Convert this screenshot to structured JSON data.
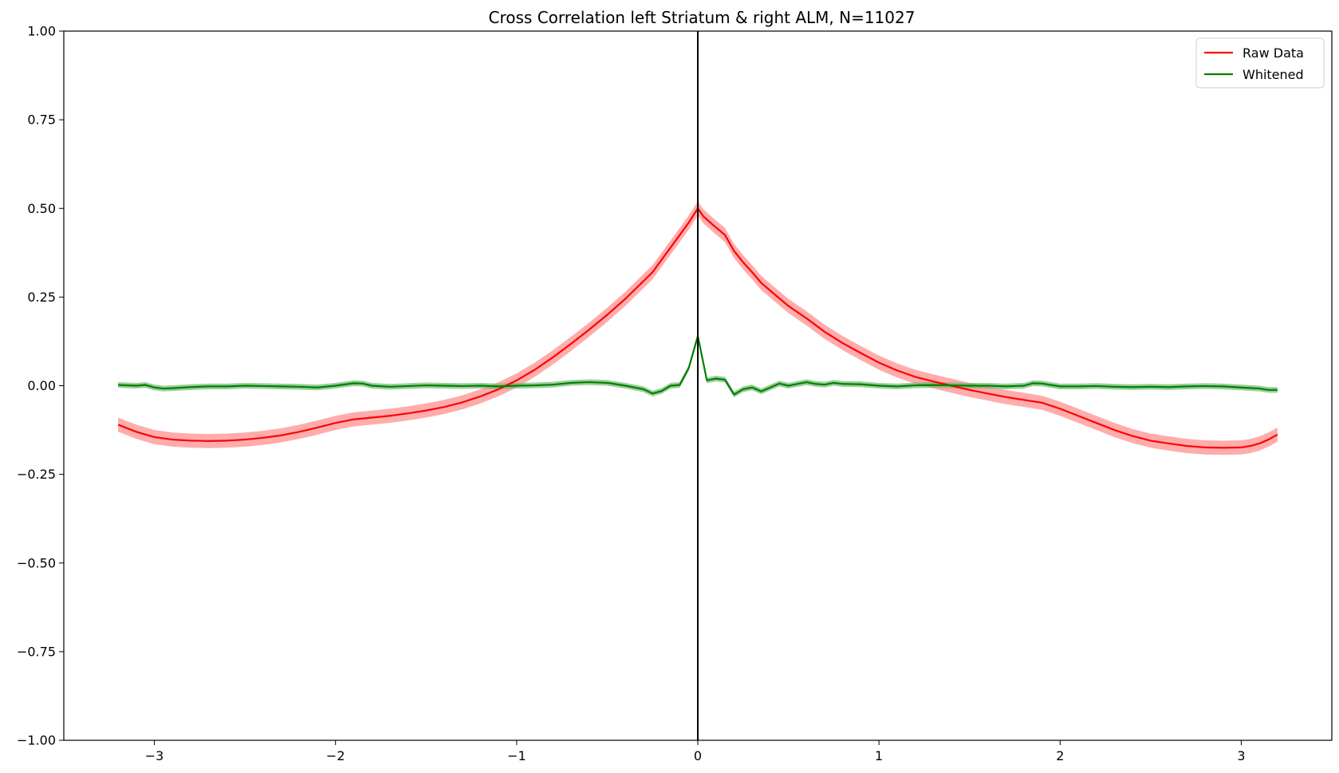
{
  "chart_data": {
    "type": "line",
    "title": "Cross Correlation left Striatum & right ALM, N=11027",
    "xlabel": "",
    "ylabel": "",
    "xlim": [
      -3.5,
      3.5
    ],
    "ylim": [
      -1.0,
      1.0
    ],
    "x_ticks": [
      -3,
      -2,
      -1,
      0,
      1,
      2,
      3
    ],
    "x_tick_labels": [
      "−3",
      "−2",
      "−1",
      "0",
      "1",
      "2",
      "3"
    ],
    "y_ticks": [
      -1.0,
      -0.75,
      -0.5,
      -0.25,
      0.0,
      0.25,
      0.5,
      0.75,
      1.0
    ],
    "y_tick_labels": [
      "−1.00",
      "−0.75",
      "−0.50",
      "−0.25",
      "0.00",
      "0.25",
      "0.50",
      "0.75",
      "1.00"
    ],
    "grid": false,
    "vertical_line_x": 0,
    "legend_position": "top-right",
    "series": [
      {
        "name": "Raw Data",
        "color": "#ff0000",
        "band_color": "#ff8080",
        "band_halfwidth": 0.02,
        "points": [
          [
            -3.2,
            -0.11
          ],
          [
            -3.1,
            -0.13
          ],
          [
            -3.0,
            -0.145
          ],
          [
            -2.9,
            -0.152
          ],
          [
            -2.8,
            -0.155
          ],
          [
            -2.7,
            -0.156
          ],
          [
            -2.6,
            -0.155
          ],
          [
            -2.5,
            -0.152
          ],
          [
            -2.4,
            -0.147
          ],
          [
            -2.3,
            -0.14
          ],
          [
            -2.2,
            -0.13
          ],
          [
            -2.1,
            -0.118
          ],
          [
            -2.0,
            -0.105
          ],
          [
            -1.9,
            -0.095
          ],
          [
            -1.8,
            -0.09
          ],
          [
            -1.7,
            -0.085
          ],
          [
            -1.6,
            -0.078
          ],
          [
            -1.5,
            -0.07
          ],
          [
            -1.4,
            -0.06
          ],
          [
            -1.3,
            -0.047
          ],
          [
            -1.2,
            -0.03
          ],
          [
            -1.1,
            -0.01
          ],
          [
            -1.0,
            0.015
          ],
          [
            -0.9,
            0.045
          ],
          [
            -0.8,
            0.08
          ],
          [
            -0.7,
            0.118
          ],
          [
            -0.6,
            0.158
          ],
          [
            -0.5,
            0.2
          ],
          [
            -0.4,
            0.245
          ],
          [
            -0.3,
            0.295
          ],
          [
            -0.25,
            0.32
          ],
          [
            -0.2,
            0.355
          ],
          [
            -0.15,
            0.39
          ],
          [
            -0.1,
            0.425
          ],
          [
            -0.05,
            0.46
          ],
          [
            0.0,
            0.5
          ],
          [
            0.03,
            0.478
          ],
          [
            0.08,
            0.455
          ],
          [
            0.15,
            0.425
          ],
          [
            0.2,
            0.38
          ],
          [
            0.25,
            0.348
          ],
          [
            0.3,
            0.32
          ],
          [
            0.35,
            0.29
          ],
          [
            0.4,
            0.268
          ],
          [
            0.5,
            0.225
          ],
          [
            0.6,
            0.19
          ],
          [
            0.7,
            0.152
          ],
          [
            0.8,
            0.12
          ],
          [
            0.9,
            0.092
          ],
          [
            1.0,
            0.065
          ],
          [
            1.1,
            0.043
          ],
          [
            1.2,
            0.025
          ],
          [
            1.3,
            0.012
          ],
          [
            1.4,
            0.0
          ],
          [
            1.5,
            -0.012
          ],
          [
            1.6,
            -0.022
          ],
          [
            1.7,
            -0.032
          ],
          [
            1.8,
            -0.04
          ],
          [
            1.9,
            -0.048
          ],
          [
            2.0,
            -0.065
          ],
          [
            2.1,
            -0.085
          ],
          [
            2.2,
            -0.105
          ],
          [
            2.3,
            -0.125
          ],
          [
            2.4,
            -0.142
          ],
          [
            2.5,
            -0.155
          ],
          [
            2.6,
            -0.163
          ],
          [
            2.7,
            -0.17
          ],
          [
            2.8,
            -0.174
          ],
          [
            2.9,
            -0.175
          ],
          [
            3.0,
            -0.174
          ],
          [
            3.05,
            -0.17
          ],
          [
            3.1,
            -0.163
          ],
          [
            3.15,
            -0.152
          ],
          [
            3.2,
            -0.138
          ]
        ]
      },
      {
        "name": "Whitened",
        "color": "#008000",
        "band_color": "#66b366",
        "band_halfwidth": 0.008,
        "points": [
          [
            -3.2,
            0.002
          ],
          [
            -3.1,
            0.0
          ],
          [
            -3.05,
            0.002
          ],
          [
            -3.0,
            -0.005
          ],
          [
            -2.95,
            -0.008
          ],
          [
            -2.9,
            -0.007
          ],
          [
            -2.8,
            -0.004
          ],
          [
            -2.7,
            -0.002
          ],
          [
            -2.6,
            -0.002
          ],
          [
            -2.5,
            0.0
          ],
          [
            -2.4,
            -0.001
          ],
          [
            -2.3,
            -0.002
          ],
          [
            -2.2,
            -0.003
          ],
          [
            -2.1,
            -0.005
          ],
          [
            -2.0,
            0.0
          ],
          [
            -1.9,
            0.007
          ],
          [
            -1.85,
            0.006
          ],
          [
            -1.8,
            0.0
          ],
          [
            -1.7,
            -0.003
          ],
          [
            -1.6,
            -0.001
          ],
          [
            -1.5,
            0.001
          ],
          [
            -1.4,
            0.0
          ],
          [
            -1.3,
            -0.001
          ],
          [
            -1.2,
            0.0
          ],
          [
            -1.1,
            -0.002
          ],
          [
            -1.0,
            0.0
          ],
          [
            -0.9,
            0.001
          ],
          [
            -0.8,
            0.003
          ],
          [
            -0.7,
            0.008
          ],
          [
            -0.6,
            0.01
          ],
          [
            -0.5,
            0.008
          ],
          [
            -0.4,
            0.0
          ],
          [
            -0.35,
            -0.005
          ],
          [
            -0.3,
            -0.01
          ],
          [
            -0.25,
            -0.022
          ],
          [
            -0.2,
            -0.015
          ],
          [
            -0.15,
            0.0
          ],
          [
            -0.1,
            0.002
          ],
          [
            -0.05,
            0.05
          ],
          [
            0.0,
            0.14
          ],
          [
            0.05,
            0.015
          ],
          [
            0.1,
            0.02
          ],
          [
            0.15,
            0.017
          ],
          [
            0.2,
            -0.025
          ],
          [
            0.25,
            -0.01
          ],
          [
            0.3,
            -0.005
          ],
          [
            0.35,
            -0.016
          ],
          [
            0.4,
            -0.005
          ],
          [
            0.45,
            0.006
          ],
          [
            0.5,
            0.0
          ],
          [
            0.55,
            0.005
          ],
          [
            0.6,
            0.01
          ],
          [
            0.65,
            0.005
          ],
          [
            0.7,
            0.003
          ],
          [
            0.75,
            0.008
          ],
          [
            0.8,
            0.005
          ],
          [
            0.9,
            0.004
          ],
          [
            1.0,
            0.0
          ],
          [
            1.1,
            -0.002
          ],
          [
            1.2,
            0.001
          ],
          [
            1.3,
            0.002
          ],
          [
            1.4,
            0.001
          ],
          [
            1.5,
            0.0
          ],
          [
            1.6,
            0.0
          ],
          [
            1.7,
            -0.002
          ],
          [
            1.8,
            0.0
          ],
          [
            1.85,
            0.007
          ],
          [
            1.9,
            0.006
          ],
          [
            2.0,
            -0.002
          ],
          [
            2.1,
            -0.002
          ],
          [
            2.2,
            -0.001
          ],
          [
            2.3,
            -0.003
          ],
          [
            2.4,
            -0.004
          ],
          [
            2.5,
            -0.003
          ],
          [
            2.6,
            -0.004
          ],
          [
            2.7,
            -0.002
          ],
          [
            2.8,
            -0.001
          ],
          [
            2.9,
            -0.002
          ],
          [
            3.0,
            -0.005
          ],
          [
            3.1,
            -0.008
          ],
          [
            3.15,
            -0.012
          ],
          [
            3.2,
            -0.012
          ]
        ]
      }
    ]
  }
}
